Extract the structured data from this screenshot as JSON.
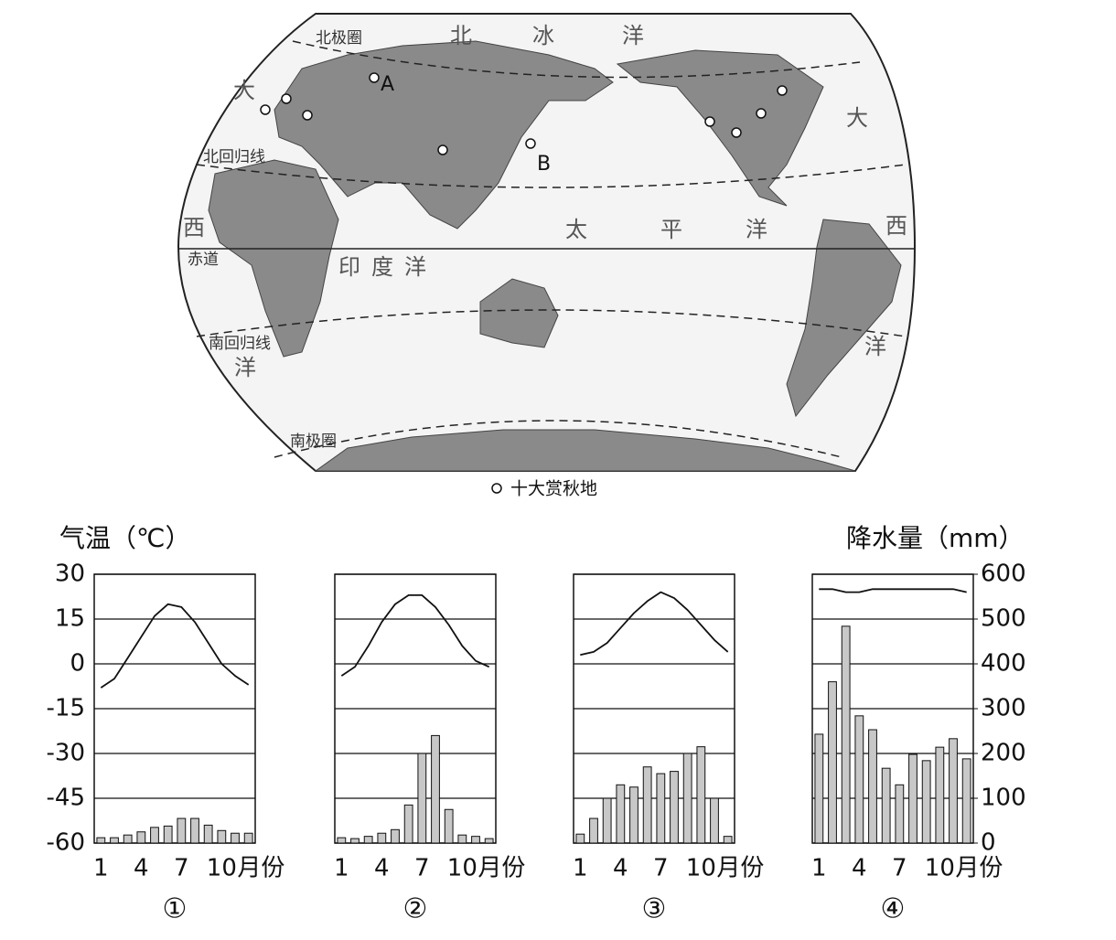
{
  "map": {
    "labels": [
      "北极圈",
      "北",
      "冰",
      "洋",
      "大",
      "大",
      "北回归线",
      "西",
      "西",
      "赤道",
      "印度洋",
      "太",
      "平",
      "洋",
      "洋",
      "洋",
      "南回归线",
      "南极圈",
      "A",
      "B"
    ],
    "legend": "十大赏秋地"
  },
  "chart_data": [
    {
      "type": "climate",
      "label": "①",
      "categories": [
        1,
        null,
        null,
        4,
        null,
        null,
        7,
        null,
        null,
        10,
        null,
        null
      ],
      "x_label": "月份",
      "y_label": "气温（℃）",
      "ylim": [
        -60,
        30
      ],
      "yticks": [
        -60,
        -45,
        -30,
        -15,
        0,
        15,
        30
      ],
      "series": [
        {
          "type": "line",
          "color": "#111",
          "values": [
            -8,
            -5,
            2,
            9,
            16,
            20,
            19,
            14,
            7,
            0,
            -4,
            -7
          ]
        },
        {
          "type": "bar",
          "axis": "y2",
          "color": "#c8c8c8",
          "values": [
            12,
            12,
            18,
            25,
            35,
            38,
            55,
            55,
            40,
            28,
            22,
            22
          ]
        }
      ]
    },
    {
      "type": "climate",
      "label": "②",
      "categories": [
        1,
        null,
        null,
        4,
        null,
        null,
        7,
        null,
        null,
        10,
        null,
        null
      ],
      "x_label": "月份",
      "series": [
        {
          "type": "line",
          "color": "#111",
          "values": [
            -4,
            -1,
            6,
            14,
            20,
            23,
            23,
            19,
            13,
            6,
            1,
            -1
          ]
        },
        {
          "type": "bar",
          "axis": "y2",
          "color": "#c8c8c8",
          "values": [
            12,
            10,
            15,
            22,
            30,
            85,
            200,
            240,
            75,
            18,
            15,
            10
          ]
        }
      ]
    },
    {
      "type": "climate",
      "label": "③",
      "categories": [
        1,
        null,
        null,
        4,
        null,
        null,
        7,
        null,
        null,
        10,
        null,
        null
      ],
      "x_label": "月份",
      "series": [
        {
          "type": "line",
          "color": "#111",
          "values": [
            3,
            4,
            7,
            12,
            17,
            21,
            24,
            22,
            18,
            13,
            8,
            4
          ]
        },
        {
          "type": "bar",
          "axis": "y2",
          "color": "#c8c8c8",
          "values": [
            20,
            55,
            100,
            130,
            125,
            170,
            155,
            160,
            200,
            215,
            100,
            15
          ]
        }
      ]
    },
    {
      "type": "climate",
      "label": "④",
      "categories": [
        1,
        null,
        null,
        4,
        null,
        null,
        7,
        null,
        null,
        10,
        null,
        null
      ],
      "x_label": "月份",
      "y2_label": "降水量（mm）",
      "y2lim": [
        0,
        600
      ],
      "y2ticks": [
        0,
        100,
        200,
        300,
        400,
        500,
        600
      ],
      "series": [
        {
          "type": "line",
          "color": "#111",
          "values": [
            25,
            25,
            24,
            24,
            25,
            25,
            25,
            25,
            25,
            25,
            25,
            24
          ]
        },
        {
          "type": "bar",
          "axis": "y2",
          "color": "#c8c8c8",
          "values": [
            243,
            360,
            484,
            284,
            253,
            167,
            130,
            198,
            184,
            214,
            233,
            188
          ]
        }
      ]
    }
  ]
}
